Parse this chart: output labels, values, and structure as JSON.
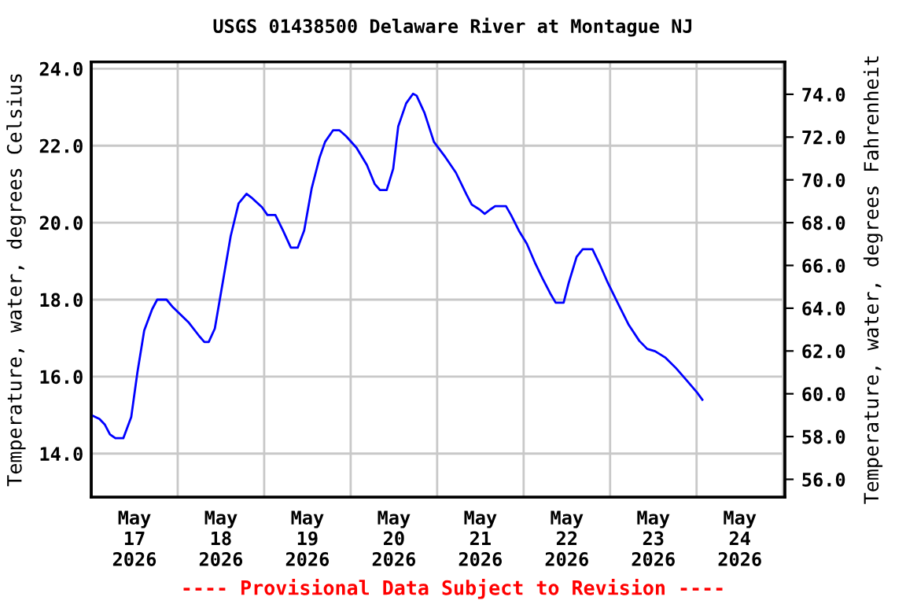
{
  "chart_data": {
    "type": "line",
    "title": "USGS 01438500 Delaware River at Montague NJ",
    "ylabel": "Temperature, water, degrees Celsius",
    "y2label": "Temperature, water, degrees Fahrenheit",
    "annotations": [
      "---- Provisional Data Subject to Revision ----"
    ],
    "x": [
      "2026-05-17T00:00",
      "2026-05-17T02:18",
      "2026-05-17T03:48",
      "2026-05-17T05:12",
      "2026-05-17T06:42",
      "2026-05-17T08:54",
      "2026-05-17T11:06",
      "2026-05-17T12:48",
      "2026-05-17T14:42",
      "2026-05-17T16:54",
      "2026-05-17T18:18",
      "2026-05-17T20:54",
      "2026-05-17T22:42",
      "2026-05-18T00:54",
      "2026-05-18T03:06",
      "2026-05-18T06:00",
      "2026-05-18T07:24",
      "2026-05-18T08:36",
      "2026-05-18T10:18",
      "2026-05-18T12:30",
      "2026-05-18T14:42",
      "2026-05-18T16:54",
      "2026-05-18T19:06",
      "2026-05-18T20:30",
      "2026-05-18T23:24",
      "2026-05-19T00:54",
      "2026-05-19T03:06",
      "2026-05-19T05:12",
      "2026-05-19T07:24",
      "2026-05-19T09:18",
      "2026-05-19T11:06",
      "2026-05-19T13:12",
      "2026-05-19T15:24",
      "2026-05-19T16:54",
      "2026-05-19T19:06",
      "2026-05-19T20:54",
      "2026-05-19T22:42",
      "2026-05-20T01:36",
      "2026-05-20T04:30",
      "2026-05-20T06:42",
      "2026-05-20T08:06",
      "2026-05-20T10:00",
      "2026-05-20T11:48",
      "2026-05-20T13:12",
      "2026-05-20T15:24",
      "2026-05-20T17:18",
      "2026-05-20T18:18",
      "2026-05-20T20:30",
      "2026-05-20T23:06",
      "2026-05-21T02:18",
      "2026-05-21T05:12",
      "2026-05-21T08:06",
      "2026-05-21T09:36",
      "2026-05-21T11:48",
      "2026-05-21T13:12",
      "2026-05-21T14:42",
      "2026-05-21T16:06",
      "2026-05-21T19:06",
      "2026-05-21T20:30",
      "2026-05-21T22:42",
      "2026-05-22T00:54",
      "2026-05-22T03:06",
      "2026-05-22T05:12",
      "2026-05-22T07:24",
      "2026-05-22T08:54",
      "2026-05-22T11:06",
      "2026-05-22T12:30",
      "2026-05-22T14:42",
      "2026-05-22T16:24",
      "2026-05-22T19:06",
      "2026-05-22T21:12",
      "2026-05-22T23:24",
      "2026-05-23T02:18",
      "2026-05-23T05:12",
      "2026-05-23T08:06",
      "2026-05-23T10:18",
      "2026-05-23T12:30",
      "2026-05-23T15:24",
      "2026-05-23T18:18",
      "2026-05-23T21:12",
      "2026-05-24T00:06",
      "2026-05-24T01:36"
    ],
    "series": [
      {
        "color": "#0000ff",
        "values": [
          15.0,
          14.9,
          14.75,
          14.5,
          14.4,
          14.4,
          14.95,
          16.1,
          17.2,
          17.75,
          18.0,
          18.0,
          17.8,
          17.6,
          17.4,
          17.05,
          16.9,
          16.9,
          17.25,
          18.45,
          19.65,
          20.5,
          20.75,
          20.65,
          20.4,
          20.2,
          20.2,
          19.8,
          19.35,
          19.35,
          19.8,
          20.9,
          21.7,
          22.1,
          22.4,
          22.4,
          22.25,
          21.95,
          21.5,
          21.0,
          20.85,
          20.85,
          21.4,
          22.5,
          23.1,
          23.35,
          23.3,
          22.85,
          22.1,
          21.7,
          21.3,
          20.74,
          20.47,
          20.34,
          20.23,
          20.34,
          20.43,
          20.43,
          20.2,
          19.79,
          19.45,
          18.97,
          18.56,
          18.16,
          17.92,
          17.92,
          18.43,
          19.11,
          19.31,
          19.31,
          18.9,
          18.43,
          17.88,
          17.34,
          16.93,
          16.72,
          16.66,
          16.49,
          16.22,
          15.91,
          15.59,
          15.4
        ]
      }
    ],
    "xlim": [
      "2026-05-17T00:00",
      "2026-05-25T00:30"
    ],
    "xticks": [
      {
        "value": "2026-05-17T00:00",
        "label": null
      },
      {
        "value": "2026-05-17T12:00",
        "label": "May\n17\n2026"
      },
      {
        "value": "2026-05-18T00:00",
        "label": null
      },
      {
        "value": "2026-05-18T12:00",
        "label": "May\n18\n2026"
      },
      {
        "value": "2026-05-19T00:00",
        "label": null
      },
      {
        "value": "2026-05-19T12:00",
        "label": "May\n19\n2026"
      },
      {
        "value": "2026-05-20T00:00",
        "label": null
      },
      {
        "value": "2026-05-20T12:00",
        "label": "May\n20\n2026"
      },
      {
        "value": "2026-05-21T00:00",
        "label": null
      },
      {
        "value": "2026-05-21T12:00",
        "label": "May\n21\n2026"
      },
      {
        "value": "2026-05-22T00:00",
        "label": null
      },
      {
        "value": "2026-05-22T12:00",
        "label": "May\n22\n2026"
      },
      {
        "value": "2026-05-23T00:00",
        "label": null
      },
      {
        "value": "2026-05-23T12:00",
        "label": "May\n23\n2026"
      },
      {
        "value": "2026-05-24T00:00",
        "label": null
      },
      {
        "value": "2026-05-24T12:00",
        "label": "May\n24\n2026"
      },
      {
        "value": "2026-05-25T00:00",
        "label": null
      }
    ],
    "ylim": [
      12.87,
      24.18
    ],
    "yticks": [
      {
        "value": 14,
        "label": "14.0"
      },
      {
        "value": 16,
        "label": "16.0"
      },
      {
        "value": 18,
        "label": "18.0"
      },
      {
        "value": 20,
        "label": "20.0"
      },
      {
        "value": 22,
        "label": "22.0"
      },
      {
        "value": 24,
        "label": "24.0"
      }
    ],
    "y2lim": [
      55.17,
      75.52
    ],
    "y2ticks": [
      {
        "value": 56,
        "label": "56.0"
      },
      {
        "value": 58,
        "label": "58.0"
      },
      {
        "value": 60,
        "label": "60.0"
      },
      {
        "value": 62,
        "label": "62.0"
      },
      {
        "value": 64,
        "label": "64.0"
      },
      {
        "value": 66,
        "label": "66.0"
      },
      {
        "value": 68,
        "label": "68.0"
      },
      {
        "value": 70,
        "label": "70.0"
      },
      {
        "value": 72,
        "label": "72.0"
      },
      {
        "value": 74,
        "label": "74.0"
      }
    ],
    "grid": true,
    "legend": false
  }
}
